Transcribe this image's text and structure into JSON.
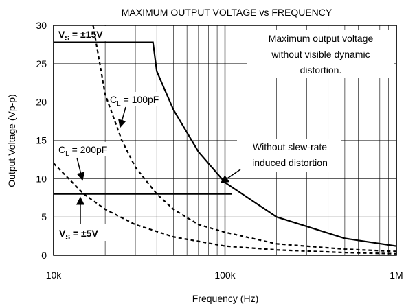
{
  "chart_data": {
    "type": "line",
    "title": "MAXIMUM OUTPUT VOLTAGE vs FREQUENCY",
    "xlabel": "Frequency (Hz)",
    "ylabel": "Output Voltage (Vp-p)",
    "xscale": "log",
    "xlim": [
      10000,
      1000000
    ],
    "xticks": [
      {
        "value": 10000,
        "label": "10k"
      },
      {
        "value": 100000,
        "label": "100k"
      },
      {
        "value": 1000000,
        "label": "1M"
      }
    ],
    "ylim": [
      0,
      30
    ],
    "yticks": [
      0,
      5,
      10,
      15,
      20,
      25,
      30
    ],
    "grid": true,
    "series": [
      {
        "color": "#000000",
        "style": "solid",
        "x": [
          10000,
          38000,
          40000,
          50000,
          70000,
          100000,
          200000,
          500000,
          1000000
        ],
        "values": [
          27.8,
          27.8,
          24,
          19,
          13.5,
          9.5,
          5,
          2.2,
          1.2
        ]
      },
      {
        "color": "#000000",
        "style": "solid",
        "x": [
          10000,
          110000
        ],
        "values": [
          8,
          8
        ]
      },
      {
        "color": "#000000",
        "style": "dashed",
        "x": [
          17000,
          20000,
          25000,
          30000,
          40000,
          50000,
          70000,
          100000,
          200000,
          500000,
          1000000
        ],
        "values": [
          30,
          21,
          15,
          11.5,
          8,
          6,
          4,
          3,
          1.5,
          0.8,
          0.5
        ]
      },
      {
        "color": "#000000",
        "style": "dashed",
        "x": [
          10000,
          15000,
          20000,
          30000,
          50000,
          100000,
          200000,
          500000,
          1000000
        ],
        "values": [
          12,
          8,
          6,
          4,
          2.4,
          1.2,
          0.7,
          0.35,
          0.2
        ]
      }
    ],
    "annotations": [
      {
        "main": "V",
        "sub": "S",
        "rest": " = ±15V"
      },
      {
        "main": "V",
        "sub": "S",
        "rest": " = ±5V"
      },
      {
        "main": "C",
        "sub": "L",
        "rest": " = 100pF"
      },
      {
        "main": "C",
        "sub": "L",
        "rest": " = 200pF"
      },
      {
        "lines": [
          "Maximum output voltage",
          "without visible dynamic",
          "distortion."
        ]
      },
      {
        "lines": [
          "Without slew-rate",
          "induced distortion"
        ]
      }
    ]
  }
}
